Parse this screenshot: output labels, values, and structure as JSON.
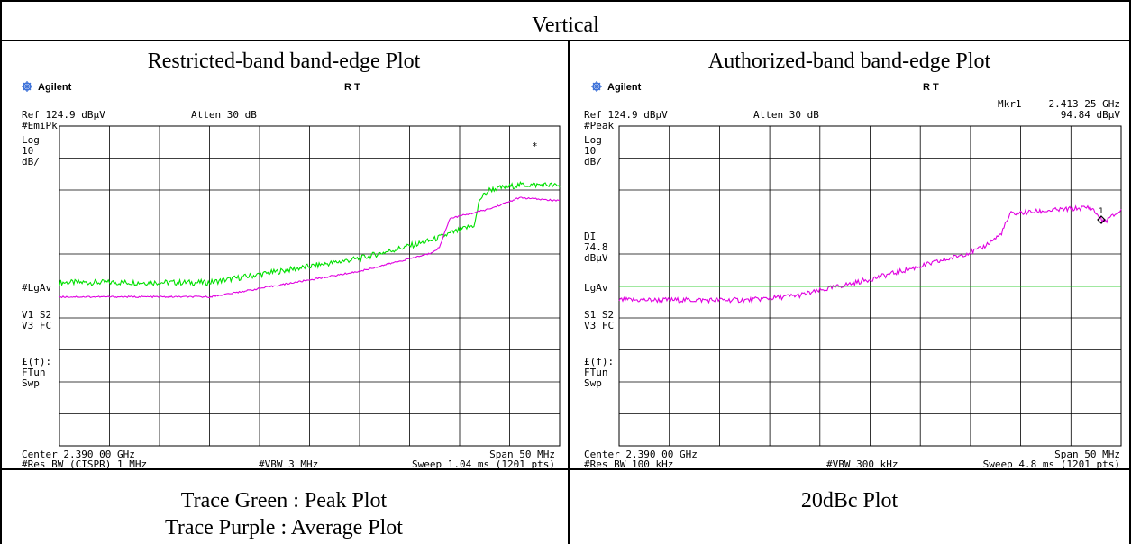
{
  "header": {
    "title": "Vertical"
  },
  "columns": [
    {
      "title": "Restricted-band band-edge Plot",
      "caption_lines": [
        "Trace Green : Peak Plot",
        "Trace Purple : Average Plot"
      ],
      "analyzer": {
        "brand": "Agilent",
        "rt": "R  T",
        "marker_label": "",
        "marker_value": "",
        "ref": "Ref 124.9 dBµV",
        "atten": "Atten 30 dB",
        "detector": "#EmiPk",
        "scale": [
          "Log",
          "10",
          "dB/"
        ],
        "display_line": [],
        "avg_label": "#LgAv",
        "trace_modes": [
          "V1  S2",
          "V3  FC"
        ],
        "func": [
          "£(f):",
          "FTun",
          "Swp"
        ],
        "asterisk": "*",
        "center": "Center 2.390 00 GHz",
        "span": "Span 50 MHz",
        "rbw": "#Res BW (CISPR) 1 MHz",
        "vbw": "#VBW 3 MHz",
        "sweep": "Sweep 1.04 ms (1201 pts)"
      }
    },
    {
      "title": "Authorized-band band-edge Plot",
      "caption_lines": [
        "20dBc Plot"
      ],
      "analyzer": {
        "brand": "Agilent",
        "rt": "R  T",
        "marker_label": "Mkr1",
        "marker_value": "2.413 25 GHz",
        "marker_amp": "94.84 dBµV",
        "ref": "Ref 124.9 dBµV",
        "atten": "Atten 30 dB",
        "detector": "#Peak",
        "scale": [
          "Log",
          "10",
          "dB/"
        ],
        "display_line": [
          "DI",
          "74.8",
          "dBµV"
        ],
        "avg_label": "LgAv",
        "trace_modes": [
          "S1  S2",
          "V3  FC"
        ],
        "func": [
          "£(f):",
          "FTun",
          "Swp"
        ],
        "marker_num": "1",
        "center": "Center 2.390 00 GHz",
        "span": "Span 50 MHz",
        "rbw": "#Res BW 100 kHz",
        "vbw": "#VBW 300 kHz",
        "sweep": "Sweep 4.8 ms (1201 pts)"
      }
    }
  ],
  "chart_data": [
    {
      "type": "line",
      "x_range_mhz": [
        2365,
        2415
      ],
      "y_range_dbuv": [
        24.9,
        124.9
      ],
      "divisions": 10,
      "series": [
        {
          "color": "#00e000",
          "x": [
            2365,
            2380,
            2382,
            2395,
            2402,
            2406.5,
            2407,
            2408,
            2411,
            2414,
            2415
          ],
          "y": [
            76,
            76,
            77,
            83.5,
            89,
            94,
            102,
            105,
            106.5,
            106.5,
            106
          ]
        },
        {
          "color": "#e000e0",
          "x": [
            2365,
            2380,
            2382,
            2395,
            2402,
            2403,
            2404,
            2408,
            2411,
            2413,
            2415
          ],
          "y": [
            71.5,
            71.5,
            72.5,
            79.5,
            85,
            87,
            96,
            99,
            102.5,
            102,
            101.5
          ]
        }
      ]
    },
    {
      "type": "line",
      "x_range_mhz": [
        2365,
        2415
      ],
      "y_range_dbuv": [
        24.9,
        124.9
      ],
      "divisions": 10,
      "display_line_dbuv": 74.8,
      "series": [
        {
          "color": "#e000e0",
          "x": [
            2365,
            2378,
            2383,
            2390,
            2398,
            2401,
            2403,
            2404,
            2408,
            2412,
            2413.25,
            2415
          ],
          "y": [
            70.5,
            70.5,
            72,
            77,
            83.5,
            86.5,
            91,
            97.5,
            98.5,
            99.5,
            94.84,
            98.5
          ]
        },
        {
          "color": "#00c000",
          "x": [
            2365,
            2415
          ],
          "y": [
            74.8,
            74.8
          ]
        }
      ]
    }
  ]
}
